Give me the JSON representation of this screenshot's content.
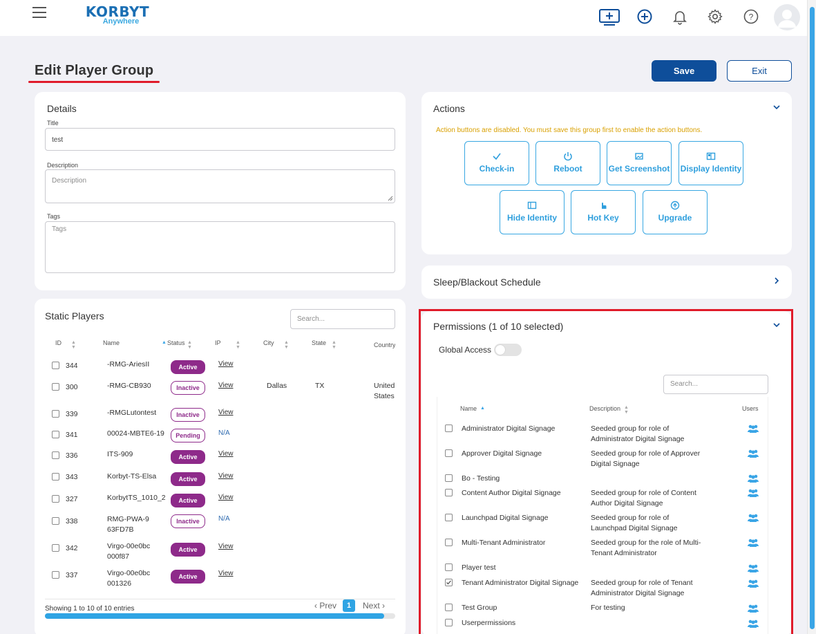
{
  "topbar": {
    "logo_main": "KORBYT",
    "logo_sub": "Anywhere",
    "icons": [
      "monitor-add-icon",
      "plus-circle-icon",
      "bell-icon",
      "gear-icon",
      "help-icon",
      "user-avatar"
    ]
  },
  "page": {
    "title": "Edit Player Group",
    "save_label": "Save",
    "exit_label": "Exit"
  },
  "details": {
    "heading": "Details",
    "title_label": "Title",
    "title_value": "test",
    "description_label": "Description",
    "description_placeholder": "Description",
    "tags_label": "Tags",
    "tags_placeholder": "Tags"
  },
  "actions": {
    "heading": "Actions",
    "warning": "Action buttons are disabled. You must save this group first to enable the action buttons.",
    "buttons": [
      {
        "label": "Check-in",
        "icon": "check-icon"
      },
      {
        "label": "Reboot",
        "icon": "power-icon"
      },
      {
        "label": "Get Screenshot",
        "icon": "image-icon"
      },
      {
        "label": "Display Identity",
        "icon": "identity-icon"
      },
      {
        "label": "Hide Identity",
        "icon": "hide-identity-icon"
      },
      {
        "label": "Hot Key",
        "icon": "hand-pointer-icon"
      },
      {
        "label": "Upgrade",
        "icon": "upgrade-icon"
      }
    ]
  },
  "sleep": {
    "heading": "Sleep/Blackout Schedule"
  },
  "static_players": {
    "heading": "Static Players",
    "search_placeholder": "Search...",
    "columns": [
      "ID",
      "Name",
      "Status",
      "IP",
      "City",
      "State",
      "Country"
    ],
    "rows": [
      {
        "id": "344",
        "name": "-RMG-AriesII",
        "status": "Active",
        "ip": "View",
        "city": "",
        "state": "",
        "country": ""
      },
      {
        "id": "300",
        "name": "-RMG-CB930",
        "status": "Inactive",
        "ip": "View",
        "city": "Dallas",
        "state": "TX",
        "country": "United States"
      },
      {
        "id": "339",
        "name": "-RMGLutontest",
        "status": "Inactive",
        "ip": "View",
        "city": "",
        "state": "",
        "country": ""
      },
      {
        "id": "341",
        "name": "00024-MBTE6-19",
        "status": "Pending",
        "ip": "N/A",
        "city": "",
        "state": "",
        "country": ""
      },
      {
        "id": "336",
        "name": "ITS-909",
        "status": "Active",
        "ip": "View",
        "city": "",
        "state": "",
        "country": ""
      },
      {
        "id": "343",
        "name": "Korbyt-TS-Elsa",
        "status": "Active",
        "ip": "View",
        "city": "",
        "state": "",
        "country": ""
      },
      {
        "id": "327",
        "name": "KorbytTS_1010_2",
        "status": "Active",
        "ip": "View",
        "city": "",
        "state": "",
        "country": ""
      },
      {
        "id": "338",
        "name": "RMG-PWA-963FD7B",
        "status": "Inactive",
        "ip": "N/A",
        "city": "",
        "state": "",
        "country": ""
      },
      {
        "id": "342",
        "name": "Virgo-00e0bc000f87",
        "status": "Active",
        "ip": "View",
        "city": "",
        "state": "",
        "country": ""
      },
      {
        "id": "337",
        "name": "Virgo-00e0bc001326",
        "status": "Active",
        "ip": "View",
        "city": "",
        "state": "",
        "country": ""
      }
    ],
    "footer_text": "Showing 1 to 10 of 10 entries",
    "prev_label": "Prev",
    "next_label": "Next",
    "current_page": "1"
  },
  "permissions": {
    "heading": "Permissions (1 of 10 selected)",
    "global_access_label": "Global Access",
    "global_access_on": false,
    "search_placeholder": "Search...",
    "columns": [
      "Name",
      "Description",
      "Users"
    ],
    "rows": [
      {
        "name": "Administrator Digital Signage",
        "description": "Seeded group for role of Administrator Digital Signage",
        "checked": false
      },
      {
        "name": "Approver Digital Signage",
        "description": "Seeded group for role of Approver Digital Signage",
        "checked": false
      },
      {
        "name": "Bo - Testing",
        "description": "",
        "checked": false
      },
      {
        "name": "Content Author Digital Signage",
        "description": "Seeded group for role of Content Author Digital Signage",
        "checked": false
      },
      {
        "name": "Launchpad Digital Signage",
        "description": "Seeded group for role of Launchpad Digital Signage",
        "checked": false
      },
      {
        "name": "Multi-Tenant Administrator",
        "description": "Seeded group for the role of Multi-Tenant Administrator",
        "checked": false
      },
      {
        "name": "Player test",
        "description": "",
        "checked": false
      },
      {
        "name": "Tenant Administrator Digital Signage",
        "description": "Seeded group for role of Tenant Administrator Digital Signage",
        "checked": true
      },
      {
        "name": "Test Group",
        "description": "For testing",
        "checked": false
      },
      {
        "name": "Userpermissions",
        "description": "",
        "checked": false
      }
    ]
  },
  "colors": {
    "primary": "#0e4e9a",
    "accent": "#38a7e2",
    "active_badge": "#8e2a8a",
    "warning": "#d9a000",
    "highlight": "#e01b2a"
  }
}
